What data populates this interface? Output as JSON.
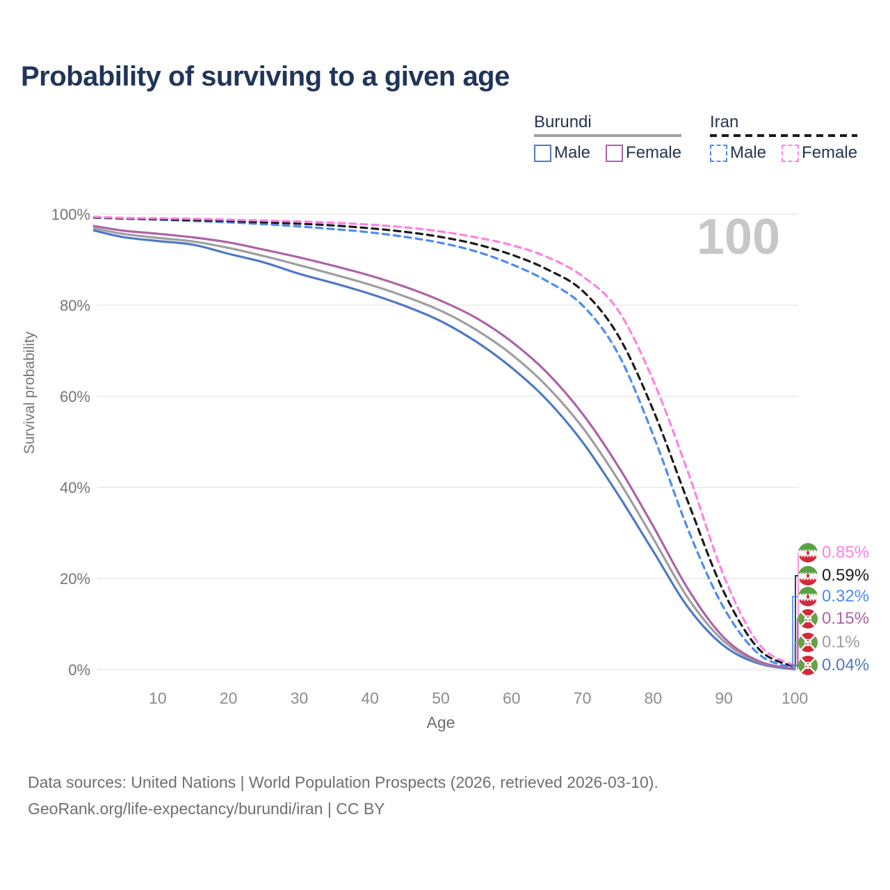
{
  "title": "Probability of surviving to a given age",
  "watermark_age": "100",
  "legend": {
    "groups": [
      {
        "label": "Burundi",
        "line_style": "solid",
        "underline_color": "#9e9e9e",
        "items": [
          {
            "label": "Male",
            "color": "#4e79c4"
          },
          {
            "label": "Female",
            "color": "#ad62a7"
          }
        ]
      },
      {
        "label": "Iran",
        "line_style": "dashed",
        "underline_color": "#1a1a1a",
        "items": [
          {
            "label": "Male",
            "color": "#4b8bf5"
          },
          {
            "label": "Female",
            "color": "#ff80e5"
          }
        ]
      }
    ]
  },
  "chart_data": {
    "type": "line",
    "title": "Probability of surviving to a given age",
    "xlabel": "Age",
    "ylabel": "Survival probability",
    "xlim": [
      0,
      100
    ],
    "ylim": [
      0,
      100
    ],
    "x_ticks": [
      10,
      20,
      30,
      40,
      50,
      60,
      70,
      80,
      90,
      100
    ],
    "y_ticks": [
      0,
      20,
      40,
      60,
      80,
      100
    ],
    "y_tick_suffix": "%",
    "grid": "horizontal",
    "legend_position": "top-right",
    "series": [
      {
        "name": "Iran Female",
        "country": "Iran",
        "sex": "Female",
        "color": "#ff80e5",
        "dash": true,
        "end_label": "0.85%",
        "flag": "iran",
        "points": [
          [
            1,
            99.4
          ],
          [
            5,
            99.2
          ],
          [
            10,
            99.1
          ],
          [
            15,
            99.0
          ],
          [
            20,
            98.8
          ],
          [
            25,
            98.6
          ],
          [
            30,
            98.4
          ],
          [
            35,
            98.1
          ],
          [
            40,
            97.7
          ],
          [
            45,
            97.1
          ],
          [
            50,
            96.2
          ],
          [
            55,
            94.9
          ],
          [
            60,
            93.2
          ],
          [
            65,
            90.6
          ],
          [
            70,
            86.4
          ],
          [
            75,
            79.0
          ],
          [
            80,
            63.5
          ],
          [
            85,
            43.0
          ],
          [
            90,
            20.5
          ],
          [
            95,
            5.5
          ],
          [
            100,
            0.85
          ]
        ]
      },
      {
        "name": "Iran Both sexes",
        "country": "Iran",
        "sex": "Both",
        "color": "#1a1a1a",
        "dash": true,
        "end_label": "0.59%",
        "flag": "iran",
        "points": [
          [
            1,
            99.3
          ],
          [
            5,
            99.1
          ],
          [
            10,
            98.9
          ],
          [
            15,
            98.7
          ],
          [
            20,
            98.5
          ],
          [
            25,
            98.2
          ],
          [
            30,
            97.9
          ],
          [
            35,
            97.5
          ],
          [
            40,
            96.9
          ],
          [
            45,
            96.1
          ],
          [
            50,
            95.0
          ],
          [
            55,
            93.4
          ],
          [
            60,
            91.1
          ],
          [
            65,
            87.9
          ],
          [
            70,
            83.2
          ],
          [
            75,
            73.5
          ],
          [
            80,
            57.0
          ],
          [
            85,
            36.5
          ],
          [
            90,
            17.0
          ],
          [
            95,
            4.4
          ],
          [
            100,
            0.59
          ]
        ]
      },
      {
        "name": "Iran Male",
        "country": "Iran",
        "sex": "Male",
        "color": "#4b8bf5",
        "dash": true,
        "end_label": "0.32%",
        "flag": "iran",
        "points": [
          [
            1,
            99.2
          ],
          [
            5,
            99.0
          ],
          [
            10,
            98.8
          ],
          [
            15,
            98.5
          ],
          [
            20,
            98.2
          ],
          [
            25,
            97.8
          ],
          [
            30,
            97.3
          ],
          [
            35,
            96.7
          ],
          [
            40,
            96.0
          ],
          [
            45,
            95.0
          ],
          [
            50,
            93.7
          ],
          [
            55,
            91.8
          ],
          [
            60,
            89.0
          ],
          [
            65,
            85.3
          ],
          [
            70,
            80.0
          ],
          [
            75,
            69.5
          ],
          [
            80,
            51.5
          ],
          [
            85,
            30.5
          ],
          [
            90,
            13.5
          ],
          [
            95,
            3.3
          ],
          [
            100,
            0.32
          ]
        ]
      },
      {
        "name": "Burundi Female",
        "country": "Burundi",
        "sex": "Female",
        "color": "#ad62a7",
        "dash": false,
        "end_label": "0.15%",
        "flag": "burundi",
        "points": [
          [
            1,
            97.4
          ],
          [
            5,
            96.4
          ],
          [
            10,
            95.7
          ],
          [
            15,
            94.9
          ],
          [
            20,
            93.8
          ],
          [
            25,
            92.2
          ],
          [
            30,
            90.5
          ],
          [
            35,
            88.6
          ],
          [
            40,
            86.5
          ],
          [
            45,
            84.0
          ],
          [
            50,
            81.0
          ],
          [
            55,
            77.2
          ],
          [
            60,
            72.0
          ],
          [
            65,
            65.2
          ],
          [
            70,
            56.2
          ],
          [
            75,
            44.8
          ],
          [
            80,
            31.5
          ],
          [
            85,
            17.5
          ],
          [
            90,
            7.0
          ],
          [
            95,
            1.8
          ],
          [
            100,
            0.15
          ]
        ]
      },
      {
        "name": "Burundi Both sexes",
        "country": "Burundi",
        "sex": "Both",
        "color": "#9e9e9e",
        "dash": false,
        "end_label": "0.1%",
        "flag": "burundi",
        "points": [
          [
            1,
            96.9
          ],
          [
            5,
            95.7
          ],
          [
            10,
            94.8
          ],
          [
            15,
            94.0
          ],
          [
            20,
            92.6
          ],
          [
            25,
            90.8
          ],
          [
            30,
            88.8
          ],
          [
            35,
            86.7
          ],
          [
            40,
            84.5
          ],
          [
            45,
            81.9
          ],
          [
            50,
            78.8
          ],
          [
            55,
            74.6
          ],
          [
            60,
            69.2
          ],
          [
            65,
            62.2
          ],
          [
            70,
            53.2
          ],
          [
            75,
            41.8
          ],
          [
            80,
            28.8
          ],
          [
            85,
            15.5
          ],
          [
            90,
            6.2
          ],
          [
            95,
            1.6
          ],
          [
            100,
            0.1
          ]
        ]
      },
      {
        "name": "Burundi Male",
        "country": "Burundi",
        "sex": "Male",
        "color": "#4e79c4",
        "dash": false,
        "end_label": "0.04%",
        "flag": "burundi",
        "points": [
          [
            1,
            96.4
          ],
          [
            5,
            95.0
          ],
          [
            10,
            94.1
          ],
          [
            15,
            93.3
          ],
          [
            20,
            91.3
          ],
          [
            25,
            89.4
          ],
          [
            30,
            86.9
          ],
          [
            35,
            84.8
          ],
          [
            40,
            82.5
          ],
          [
            45,
            79.8
          ],
          [
            50,
            76.5
          ],
          [
            55,
            72.0
          ],
          [
            60,
            66.3
          ],
          [
            65,
            59.2
          ],
          [
            70,
            50.0
          ],
          [
            75,
            38.5
          ],
          [
            80,
            26.0
          ],
          [
            85,
            13.5
          ],
          [
            90,
            5.2
          ],
          [
            95,
            1.3
          ],
          [
            100,
            0.04
          ]
        ]
      }
    ]
  },
  "footer": {
    "line1": "Data sources: United Nations | World Population Prospects (2026, retrieved 2026-03-10).",
    "line2": "GeoRank.org/life-expectancy/burundi/iran | CC BY"
  }
}
